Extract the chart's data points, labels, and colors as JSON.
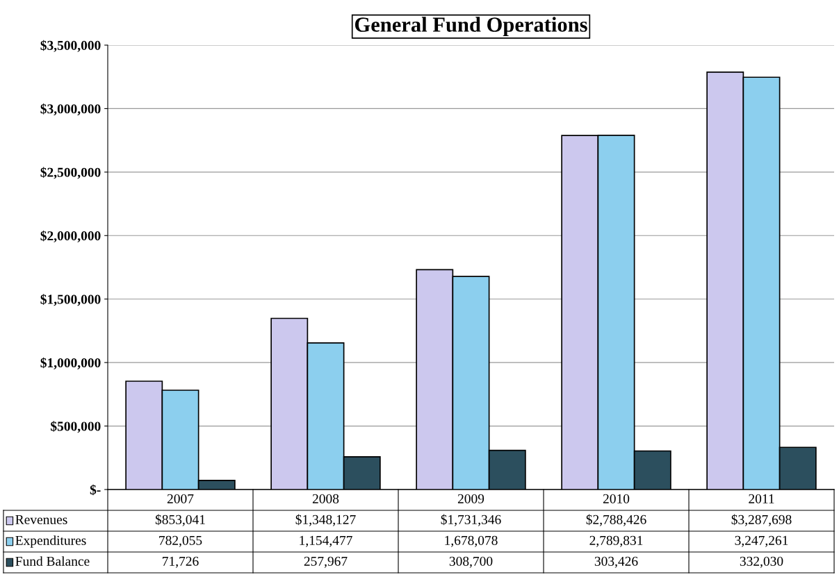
{
  "chart_data": {
    "type": "bar",
    "title": "General Fund Operations",
    "categories": [
      "2007",
      "2008",
      "2009",
      "2010",
      "2011"
    ],
    "series": [
      {
        "name": "Revenues",
        "color": "#ccc8ee",
        "values": [
          853041,
          1348127,
          1731346,
          2788426,
          3287698
        ],
        "value_labels": [
          "$853,041",
          "$1,348,127",
          "$1,731,346",
          "$2,788,426",
          "$3,287,698"
        ]
      },
      {
        "name": "Expenditures",
        "color": "#8ccfee",
        "values": [
          782055,
          1154477,
          1678078,
          2789831,
          3247261
        ],
        "value_labels": [
          "782,055",
          "1,154,477",
          "1,678,078",
          "2,789,831",
          "3,247,261"
        ]
      },
      {
        "name": "Fund Balance",
        "color": "#2c4f5e",
        "values": [
          71726,
          257967,
          308700,
          303426,
          332030
        ],
        "value_labels": [
          "71,726",
          "257,967",
          "308,700",
          "303,426",
          "332,030"
        ]
      }
    ],
    "ylim": [
      0,
      3500000
    ],
    "yticks": [
      {
        "value": 0,
        "label": "$-"
      },
      {
        "value": 500000,
        "label": "$500,000"
      },
      {
        "value": 1000000,
        "label": "$1,000,000"
      },
      {
        "value": 1500000,
        "label": "$1,500,000"
      },
      {
        "value": 2000000,
        "label": "$2,000,000"
      },
      {
        "value": 2500000,
        "label": "$2,500,000"
      },
      {
        "value": 3000000,
        "label": "$3,000,000"
      },
      {
        "value": 3500000,
        "label": "$3,500,000"
      }
    ],
    "grid": "y",
    "legend": "bottom"
  }
}
